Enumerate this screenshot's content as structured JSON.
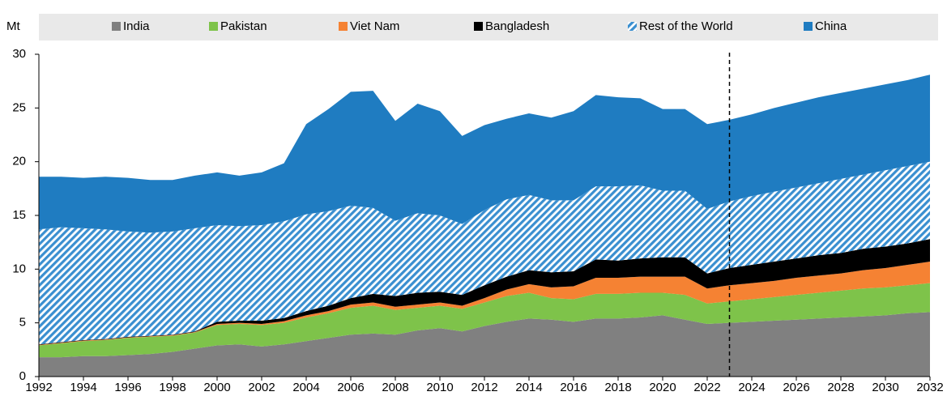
{
  "chart_data": {
    "type": "stacked_area",
    "y_unit": "Mt",
    "x": [
      1992,
      1993,
      1994,
      1995,
      1996,
      1997,
      1998,
      1999,
      2000,
      2001,
      2002,
      2003,
      2004,
      2005,
      2006,
      2007,
      2008,
      2009,
      2010,
      2011,
      2012,
      2013,
      2014,
      2015,
      2016,
      2017,
      2018,
      2019,
      2020,
      2021,
      2022,
      2023,
      2024,
      2025,
      2026,
      2027,
      2028,
      2029,
      2030,
      2031,
      2032
    ],
    "xlim": [
      1992,
      2032
    ],
    "xticks": [
      1992,
      1994,
      1996,
      1998,
      2000,
      2002,
      2004,
      2006,
      2008,
      2010,
      2012,
      2014,
      2016,
      2018,
      2020,
      2022,
      2024,
      2026,
      2028,
      2030,
      2032
    ],
    "ylim": [
      0,
      30
    ],
    "yticks": [
      0,
      5,
      10,
      15,
      20,
      25,
      30
    ],
    "vline": 2023,
    "legend": "top",
    "series": [
      {
        "name": "India",
        "color": "#808080",
        "values": [
          1.8,
          1.8,
          1.9,
          1.9,
          2.0,
          2.1,
          2.3,
          2.6,
          2.9,
          3.0,
          2.8,
          3.0,
          3.3,
          3.6,
          3.9,
          4.0,
          3.9,
          4.3,
          4.5,
          4.2,
          4.7,
          5.1,
          5.4,
          5.3,
          5.1,
          5.4,
          5.4,
          5.5,
          5.7,
          5.3,
          4.9,
          5.0,
          5.1,
          5.2,
          5.3,
          5.4,
          5.5,
          5.6,
          5.7,
          5.9,
          6.0
        ]
      },
      {
        "name": "Pakistan",
        "color": "#7ec34a",
        "values": [
          1.1,
          1.3,
          1.4,
          1.5,
          1.6,
          1.6,
          1.5,
          1.5,
          1.9,
          1.9,
          2.0,
          2.0,
          2.2,
          2.3,
          2.5,
          2.6,
          2.3,
          2.1,
          2.1,
          2.1,
          2.2,
          2.4,
          2.4,
          2.0,
          2.1,
          2.3,
          2.3,
          2.3,
          2.1,
          2.3,
          1.9,
          2.0,
          2.1,
          2.2,
          2.3,
          2.4,
          2.5,
          2.6,
          2.6,
          2.6,
          2.7
        ]
      },
      {
        "name": "Viet Nam",
        "color": "#f58233",
        "values": [
          0.05,
          0.05,
          0.05,
          0.05,
          0.05,
          0.05,
          0.05,
          0.05,
          0.1,
          0.1,
          0.1,
          0.15,
          0.2,
          0.2,
          0.3,
          0.3,
          0.3,
          0.3,
          0.3,
          0.3,
          0.4,
          0.6,
          0.8,
          1.0,
          1.2,
          1.5,
          1.5,
          1.5,
          1.5,
          1.7,
          1.4,
          1.5,
          1.5,
          1.5,
          1.6,
          1.6,
          1.6,
          1.7,
          1.8,
          1.9,
          2.0
        ]
      },
      {
        "name": "Bangladesh",
        "color": "#000000",
        "values": [
          0.05,
          0.05,
          0.05,
          0.05,
          0.05,
          0.05,
          0.05,
          0.05,
          0.2,
          0.2,
          0.3,
          0.3,
          0.4,
          0.5,
          0.6,
          0.8,
          1.0,
          1.1,
          1.0,
          1.0,
          1.2,
          1.2,
          1.3,
          1.4,
          1.4,
          1.7,
          1.6,
          1.7,
          1.8,
          1.8,
          1.4,
          1.6,
          1.7,
          1.8,
          1.8,
          1.9,
          1.9,
          2.0,
          2.0,
          2.0,
          2.1
        ]
      },
      {
        "name": "Rest of the World",
        "color": "#3a8fd0",
        "hatch": true,
        "values": [
          10.7,
          10.7,
          10.4,
          10.2,
          9.8,
          9.6,
          9.6,
          9.6,
          9.0,
          8.8,
          8.9,
          9.0,
          9.0,
          8.8,
          8.6,
          8.0,
          7.0,
          7.4,
          7.1,
          6.6,
          7.0,
          7.2,
          7.0,
          6.7,
          6.6,
          6.8,
          6.9,
          6.8,
          6.2,
          6.2,
          6.0,
          6.2,
          6.4,
          6.5,
          6.6,
          6.7,
          6.9,
          6.9,
          7.1,
          7.2,
          7.2
        ]
      },
      {
        "name": "China",
        "color": "#1f7cc1",
        "values": [
          4.9,
          4.7,
          4.7,
          4.9,
          5.0,
          4.9,
          4.8,
          4.9,
          4.9,
          4.7,
          4.9,
          5.4,
          8.4,
          9.5,
          10.6,
          10.9,
          9.3,
          10.2,
          9.7,
          8.2,
          7.9,
          7.5,
          7.6,
          7.7,
          8.3,
          8.5,
          8.3,
          8.1,
          7.6,
          7.6,
          7.9,
          7.6,
          7.6,
          7.8,
          7.9,
          8.0,
          8.0,
          8.0,
          8.0,
          8.0,
          8.1
        ]
      }
    ]
  }
}
